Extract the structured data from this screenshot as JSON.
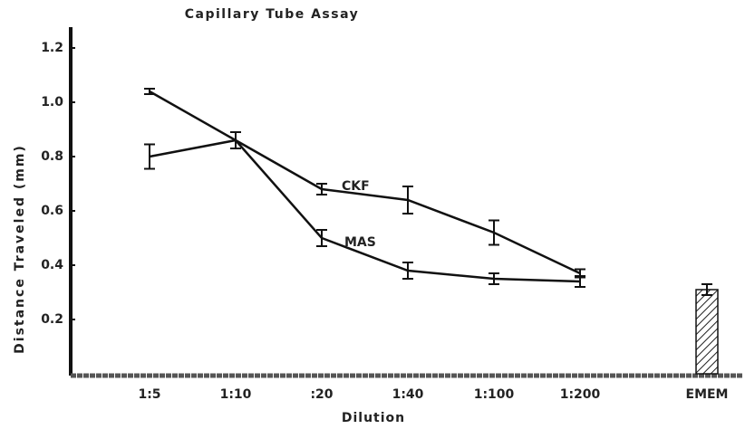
{
  "chart_data": {
    "type": "line",
    "title": "Capillary Tube Assay",
    "x_label": "Dilution",
    "y_label": "Distance Traveled (mm)",
    "categories": [
      "1:5",
      "1:10",
      ":20",
      "1:40",
      "1:100",
      "1:200",
      "EMEM"
    ],
    "series": [
      {
        "name": "CKF",
        "color": "#111111",
        "values": [
          0.8,
          0.86,
          0.68,
          0.64,
          0.52,
          0.37,
          null
        ],
        "errors": [
          0.045,
          0.03,
          0.02,
          0.05,
          0.045,
          0.015,
          null
        ]
      },
      {
        "name": "MAS",
        "color": "#111111",
        "values": [
          1.04,
          0.86,
          0.5,
          0.38,
          0.35,
          0.34,
          null
        ],
        "errors": [
          0.01,
          0.03,
          0.03,
          0.03,
          0.02,
          0.02,
          null
        ]
      }
    ],
    "bar_values": [
      null,
      null,
      null,
      null,
      null,
      null,
      0.31
    ],
    "bar_errors": [
      null,
      null,
      null,
      null,
      null,
      null,
      0.02
    ],
    "ylim": [
      0,
      1.25
    ],
    "yticks": [
      0.2,
      0.4,
      0.6,
      0.8,
      {
        "value": 1,
        "label": "1.0"
      },
      1.2
    ]
  }
}
